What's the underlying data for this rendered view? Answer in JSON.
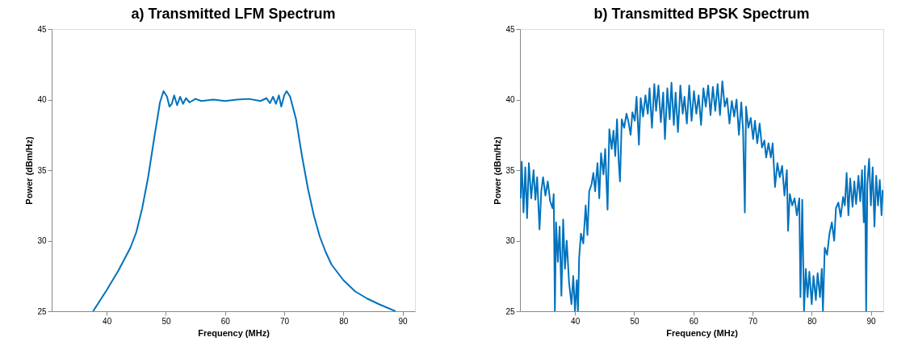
{
  "chart_data": [
    {
      "type": "line",
      "title": "a) Transmitted LFM Spectrum",
      "xlabel": "Frequency (MHz)",
      "ylabel": "Power (dBm/Hz)",
      "color": "#0072bd",
      "xlim": [
        30.7,
        92.1
      ],
      "ylim": [
        25,
        45
      ],
      "xticks": [
        40,
        50,
        60,
        70,
        80,
        90
      ],
      "yticks": [
        25,
        30,
        35,
        40,
        45
      ],
      "x": [
        37.7,
        40,
        42,
        44,
        45,
        46,
        47,
        48,
        49,
        49.6,
        50.2,
        50.6,
        51,
        51.4,
        51.9,
        52.4,
        52.9,
        53.4,
        54,
        55,
        56,
        58,
        60,
        62,
        64,
        66,
        67,
        67.6,
        68.1,
        68.6,
        69.1,
        69.5,
        70,
        70.4,
        71,
        72,
        73,
        74,
        75,
        76,
        77,
        78,
        80,
        82,
        84,
        86,
        88.8
      ],
      "values": [
        25,
        26.5,
        27.9,
        29.5,
        30.6,
        32.3,
        34.5,
        37.2,
        39.8,
        40.6,
        40.2,
        39.5,
        39.7,
        40.3,
        39.6,
        40.2,
        39.7,
        40.1,
        39.8,
        40.05,
        39.9,
        40,
        39.9,
        40,
        40.05,
        39.9,
        40.1,
        39.75,
        40.2,
        39.7,
        40.3,
        39.5,
        40.3,
        40.6,
        40.2,
        38.6,
        36,
        33.7,
        31.8,
        30.3,
        29.2,
        28.3,
        27.2,
        26.4,
        25.9,
        25.5,
        25
      ]
    },
    {
      "type": "line",
      "title": "b) Transmitted BPSK Spectrum",
      "xlabel": "Frequency (MHz)",
      "ylabel": "Power (dBm/Hz)",
      "color": "#0072bd",
      "xlim": [
        30.7,
        92.1
      ],
      "ylim": [
        25,
        45
      ],
      "xticks": [
        40,
        50,
        60,
        70,
        80,
        90
      ],
      "yticks": [
        25,
        30,
        35,
        40,
        45
      ],
      "x": [
        30.8,
        31.0,
        31.3,
        31.6,
        31.9,
        32.2,
        32.6,
        33,
        33.3,
        33.6,
        34,
        34.3,
        34.6,
        35,
        35.4,
        35.8,
        36.2,
        36.4,
        36.6,
        36.8,
        37.1,
        37.4,
        37.7,
        38,
        38.3,
        38.6,
        39,
        39.4,
        39.7,
        40,
        40.3,
        40.5,
        40.7,
        41,
        41.4,
        41.8,
        42.1,
        42.4,
        42.8,
        43.1,
        43.4,
        43.8,
        44.1,
        44.4,
        44.8,
        45.1,
        45.5,
        45.8,
        46.2,
        46.5,
        46.8,
        47.1,
        47.4,
        47.6,
        47.9,
        48.3,
        48.7,
        49,
        49.4,
        49.7,
        50.1,
        50.4,
        50.8,
        51.1,
        51.5,
        51.9,
        52.3,
        52.6,
        53,
        53.4,
        53.7,
        54.1,
        54.5,
        54.9,
        55.2,
        55.6,
        56,
        56.3,
        56.7,
        57,
        57.4,
        57.8,
        58.2,
        58.5,
        58.9,
        59.3,
        59.7,
        60.1,
        60.5,
        60.9,
        61.3,
        61.7,
        62.1,
        62.5,
        62.9,
        63.3,
        63.7,
        64.1,
        64.5,
        64.9,
        65.3,
        65.7,
        66.1,
        66.5,
        66.9,
        67.3,
        67.7,
        68.1,
        68.4,
        68.7,
        68.9,
        69.3,
        69.7,
        70.1,
        70.4,
        70.8,
        71.2,
        71.6,
        72,
        72.3,
        72.7,
        73.1,
        73.4,
        73.8,
        74.2,
        74.6,
        75,
        75.4,
        75.8,
        76,
        76.3,
        76.7,
        77.1,
        77.5,
        77.9,
        78.1,
        78.4,
        78.7,
        79,
        79.3,
        79.6,
        80,
        80.3,
        80.7,
        81,
        81.4,
        81.7,
        81.9,
        82.2,
        82.6,
        83,
        83.4,
        83.8,
        84.1,
        84.5,
        84.9,
        85.3,
        85.6,
        85.9,
        86.2,
        86.5,
        86.9,
        87.2,
        87.5,
        87.9,
        88.2,
        88.5,
        88.8,
        89.0,
        89.2,
        89.4,
        89.7,
        90,
        90.3,
        90.6,
        90.9,
        91.2,
        91.5,
        91.8,
        92.0
      ],
      "values": [
        33.0,
        35.6,
        32.0,
        35.2,
        31.6,
        35.5,
        33,
        35,
        32.9,
        34.5,
        30.8,
        33.5,
        34.5,
        33.2,
        34.2,
        32.8,
        32.3,
        33.3,
        25,
        31.3,
        28.5,
        31,
        26.1,
        31.5,
        28,
        30,
        27,
        25.5,
        27.5,
        25,
        27.2,
        25,
        28.8,
        30.5,
        29.8,
        32.5,
        30.4,
        33.5,
        34,
        34.8,
        33.5,
        35.5,
        33,
        36.2,
        34.7,
        36.5,
        32.2,
        37.9,
        36.5,
        37.8,
        36,
        38.6,
        35.5,
        34.2,
        38.6,
        38,
        39,
        38.5,
        37.5,
        39.1,
        38.5,
        40.2,
        36.8,
        40.1,
        38.8,
        40.3,
        39,
        40.8,
        38,
        41.1,
        39.2,
        41,
        38.4,
        40.5,
        37.2,
        40.8,
        38.6,
        41.2,
        38.2,
        40.5,
        37.7,
        41,
        39,
        40.2,
        38.3,
        41,
        38.5,
        40.6,
        39,
        40.3,
        38.2,
        40.8,
        39.5,
        41,
        38.9,
        40.9,
        39.2,
        41.1,
        38.9,
        41.3,
        39.5,
        40.1,
        38.3,
        39.9,
        38.8,
        40,
        37.5,
        39.8,
        37.8,
        32,
        39.5,
        38,
        38.7,
        37.2,
        38.5,
        36.9,
        38.3,
        36.6,
        37.1,
        35.9,
        36.9,
        35.9,
        36.9,
        33.8,
        35.5,
        34.5,
        35.3,
        33.2,
        35,
        30.7,
        33.3,
        32.5,
        33,
        31.8,
        33,
        26,
        32.9,
        25,
        28,
        26,
        27.8,
        25.5,
        27.5,
        25.8,
        27.7,
        26,
        28,
        25,
        29.5,
        29,
        30.5,
        31.3,
        30,
        32.3,
        32.7,
        31.7,
        33.1,
        32.5,
        34.8,
        31.8,
        34.4,
        32.4,
        34.2,
        32.6,
        34.6,
        32.8,
        35,
        31.3,
        35.3,
        25,
        34,
        35.8,
        32.5,
        35.2,
        31,
        34.6,
        32.5,
        34.3,
        31.8,
        33.6
      ]
    }
  ]
}
